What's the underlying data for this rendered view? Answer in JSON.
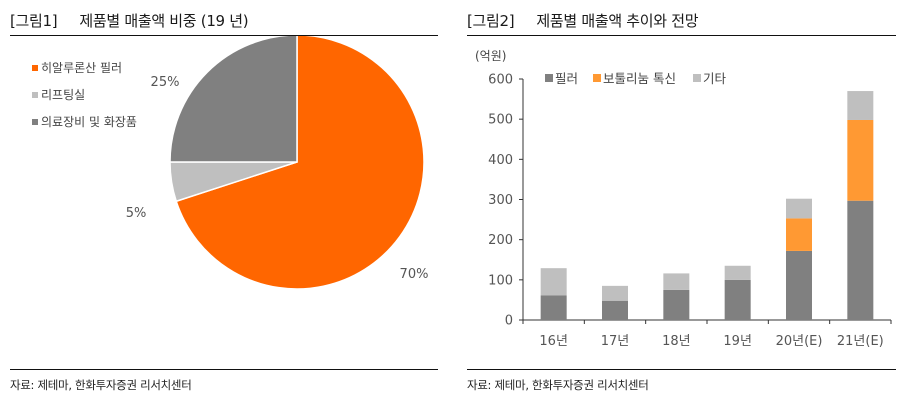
{
  "figures": [
    {
      "label": "[그림1]",
      "title": "제품별 매출액 비중 (19 년)",
      "source": "자료: 제테마, 한화투자증권 리서치센터",
      "legend": [
        {
          "label": "히알루론산 필러",
          "color": "#FF6600"
        },
        {
          "label": "리프팅실",
          "color": "#BFBFBF"
        },
        {
          "label": "의료장비 및 화장품",
          "color": "#808080"
        }
      ],
      "slice_labels": [
        "70%",
        "5%",
        "25%"
      ]
    },
    {
      "label": "[그림2]",
      "title": "제품별 매출액 추이와 전망",
      "source": "자료: 제테마, 한화투자증권 리서치센터",
      "unit": "(억원)",
      "legend": [
        {
          "label": "필러",
          "color": "#808080"
        },
        {
          "label": "보툴리눔 톡신",
          "color": "#FF9933"
        },
        {
          "label": "기타",
          "color": "#BFBFBF"
        }
      ],
      "y_ticks": [
        "0",
        "100",
        "200",
        "300",
        "400",
        "500",
        "600"
      ],
      "x_labels": [
        "16년",
        "17년",
        "18년",
        "19년",
        "20년(E)",
        "21년(E)"
      ]
    }
  ],
  "chart_data": [
    {
      "type": "pie",
      "title": "제품별 매출액 비중 (19 년)",
      "categories": [
        "히알루론산 필러",
        "리프팅실",
        "의료장비 및 화장품"
      ],
      "values": [
        70,
        5,
        25
      ],
      "colors": [
        "#FF6600",
        "#BFBFBF",
        "#808080"
      ],
      "unit": "%",
      "legend_position": "left"
    },
    {
      "type": "bar",
      "stacked": true,
      "title": "제품별 매출액 추이와 전망",
      "xlabel": "",
      "ylabel": "(억원)",
      "categories": [
        "16년",
        "17년",
        "18년",
        "19년",
        "20년(E)",
        "21년(E)"
      ],
      "series": [
        {
          "name": "필러",
          "color": "#808080",
          "values": [
            61,
            48,
            75,
            100,
            172,
            297
          ]
        },
        {
          "name": "보툴리눔 톡신",
          "color": "#FF9933",
          "values": [
            0,
            0,
            0,
            0,
            81,
            201
          ]
        },
        {
          "name": "기타",
          "color": "#BFBFBF",
          "values": [
            68,
            37,
            41,
            35,
            49,
            72
          ]
        }
      ],
      "totals": [
        129,
        85,
        116,
        135,
        302,
        570
      ],
      "ylim": [
        0,
        600
      ],
      "yticks": [
        0,
        100,
        200,
        300,
        400,
        500,
        600
      ],
      "grid": false,
      "legend_position": "top"
    }
  ]
}
